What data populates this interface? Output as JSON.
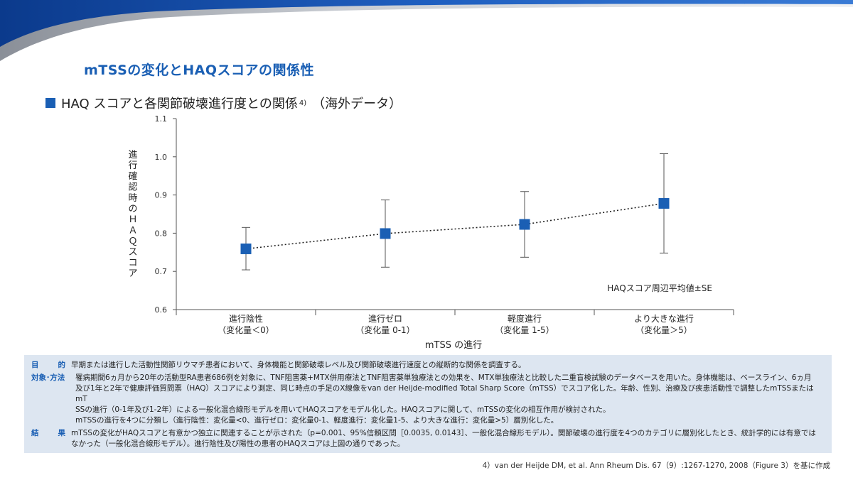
{
  "slide": {
    "title": "mTSSの変化とHAQスコアの関係性",
    "heading": "HAQ スコアと各関節破壊進行度との関係",
    "heading_ref": "4)",
    "heading_note": "（海外データ）",
    "accent_color": "#1a5fb4"
  },
  "chart_data": {
    "type": "scatter",
    "subtype": "point-with-error-bars",
    "ylabel": "進行確認時のＨＡＱスコア",
    "xlabel": "mTSS の進行",
    "ylim": [
      0.6,
      1.1
    ],
    "yticks": [
      "0.6",
      "0.7",
      "0.8",
      "0.9",
      "1.0",
      "1.1"
    ],
    "categories": [
      {
        "line1": "進行陰性",
        "line2": "（変化量＜0）"
      },
      {
        "line1": "進行ゼロ",
        "line2": "（変化量 0-1）"
      },
      {
        "line1": "軽度進行",
        "line2": "（変化量 1-5）"
      },
      {
        "line1": "より大きな進行",
        "line2": "（変化量＞5）"
      }
    ],
    "values": [
      0.759,
      0.799,
      0.823,
      0.878
    ],
    "error_upper": [
      0.815,
      0.887,
      0.909,
      1.008
    ],
    "error_lower": [
      0.704,
      0.711,
      0.737,
      0.748
    ],
    "trend": "dotted",
    "annotation": "HAQスコア周辺平均値±SE",
    "marker_color": "#1a5fb4"
  },
  "info": {
    "purpose_label_1": "目",
    "purpose_label_2": "的",
    "purpose_text": "早期または進行した活動性関節リウマチ患者において、身体機能と関節破壊レベル及び関節破壊進行速度との縦断的な関係を調査する。",
    "method_label": "対象･方法",
    "method_line1": "罹病期間6ヵ月から20年の活動型RA患者686例を対象に、TNF阻害薬+MTX併用療法とTNF阻害薬単独療法との効果を、MTX単独療法と比較した二重盲検試験のデータベースを用いた。身体機能は、ベースライン、6ヵ月",
    "method_line2": "及び1年と2年で健康評価質問票（HAQ）スコアにより測定、同じ時点の手足のX線像をvan der Heijde-modified Total Sharp Score（mTSS）でスコア化した。年齢、性別、治療及び疾患活動性で調整したmTSSまたはmT",
    "method_line3": "SSの進行（0-1年及び1-2年）による一般化混合線形モデルを用いてHAQスコアをモデル化した。HAQスコアに関して、mTSSの変化の相互作用が検討された。",
    "method_line4": "mTSSの進行を4つに分類し（進行陰性：変化量<0、進行ゼロ：変化量0-1、軽度進行：変化量1-5、より大きな進行：変化量>5）層別化した。",
    "result_label_1": "結",
    "result_label_2": "果",
    "result_line1": "mTSSの変化がHAQスコアと有意かつ独立に関連することが示された（p=0.001、95%信頼区間［0.0035, 0.0143］、一般化混合線形モデル）。関節破壊の進行度を4つのカテゴリに層別化したとき、統計学的には有意では",
    "result_line2": "なかった（一般化混合線形モデル）。進行陰性及び陽性の患者のHAQスコアは上図の通りであった。"
  },
  "citation": "4）van der Heijde DM, et al. Ann Rheum Dis. 67（9）:1267-1270, 2008（Figure 3）を基に作成"
}
